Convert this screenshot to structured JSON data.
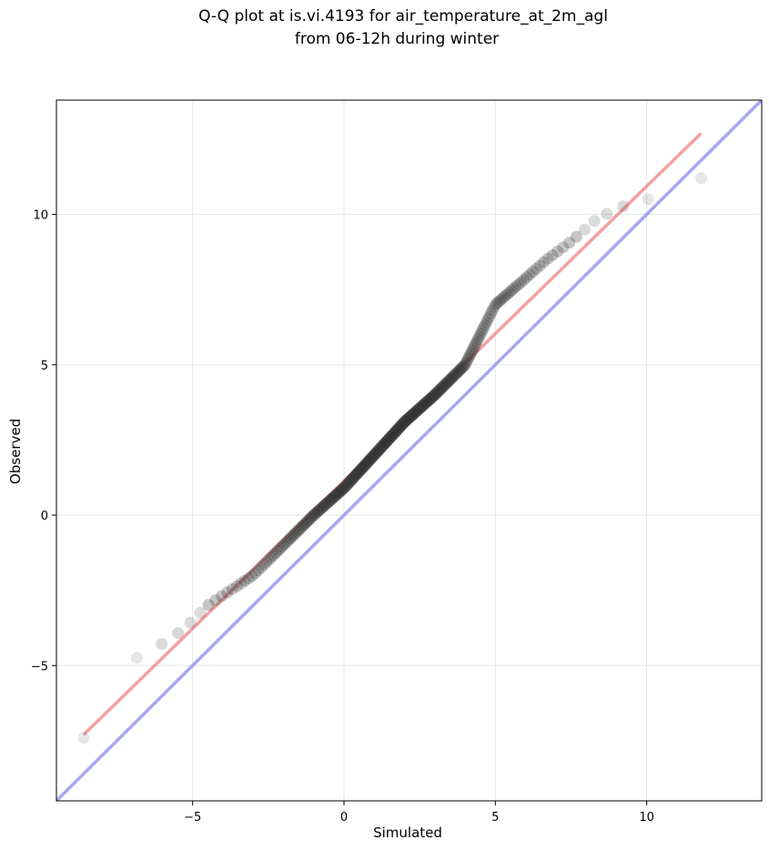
{
  "chart_data": {
    "type": "scatter",
    "title_line1": "Q-Q plot at is.vi.4193 for air_temperature_at_2m_agl",
    "title_line2": "from 06-12h during winter",
    "xlabel": "Simulated",
    "ylabel": "Observed",
    "xlim": [
      -9.5,
      13.8
    ],
    "ylim": [
      -9.5,
      13.8
    ],
    "xticks": [
      -5,
      0,
      5,
      10
    ],
    "yticks": [
      -5,
      0,
      5,
      10
    ],
    "xtick_labels": [
      "−5",
      "0",
      "5",
      "10"
    ],
    "ytick_labels": [
      "−5",
      "0",
      "5",
      "10"
    ],
    "grid": true,
    "colors": {
      "points": "#333333",
      "fit_line": "#f08080",
      "identity_line": "#8888ee",
      "grid": "#e6e6e6"
    },
    "series": [
      {
        "kind": "points",
        "knots": [
          [
            -8.6,
            -7.4
          ],
          [
            -8.5,
            -6.5
          ],
          [
            -8.2,
            -5.9
          ],
          [
            -7.8,
            -5.2
          ],
          [
            -7.2,
            -4.9
          ],
          [
            -6.5,
            -4.6
          ],
          [
            -5.3,
            -3.8
          ],
          [
            -4.5,
            -3.0
          ],
          [
            -3.0,
            -2.0
          ],
          [
            -1.0,
            0.0
          ],
          [
            0.0,
            0.9
          ],
          [
            1.0,
            2.0
          ],
          [
            2.0,
            3.1
          ],
          [
            3.0,
            4.0
          ],
          [
            4.0,
            5.0
          ],
          [
            4.5,
            6.0
          ],
          [
            5.0,
            7.0
          ],
          [
            5.8,
            7.7
          ],
          [
            6.7,
            8.5
          ],
          [
            7.5,
            9.1
          ],
          [
            8.3,
            9.8
          ],
          [
            9.0,
            10.2
          ],
          [
            10.0,
            10.5
          ],
          [
            11.1,
            10.6
          ],
          [
            11.8,
            11.2
          ]
        ],
        "count": 300
      },
      {
        "kind": "fit_line",
        "x": [
          -8.6,
          11.8
        ],
        "y": [
          -7.3,
          12.7
        ]
      },
      {
        "kind": "identity_line",
        "x": [
          -9.5,
          13.8
        ],
        "y": [
          -9.5,
          13.8
        ]
      }
    ]
  }
}
